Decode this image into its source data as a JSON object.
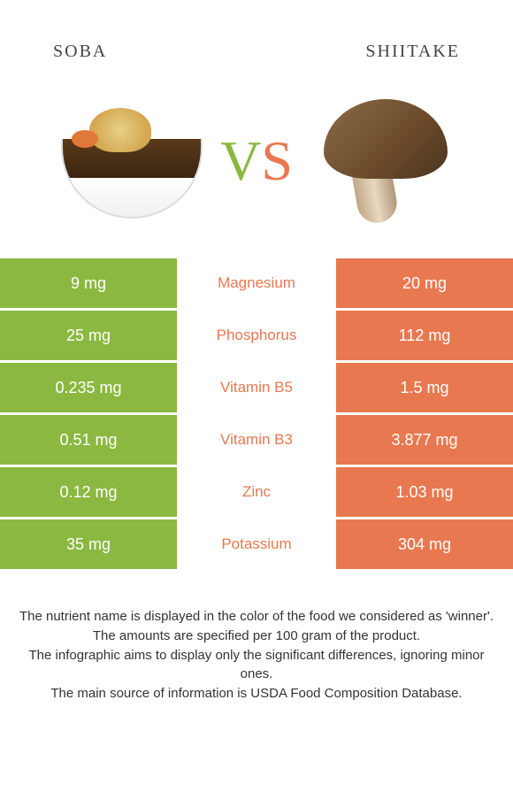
{
  "header": {
    "left_title": "soba",
    "right_title": "shiitake"
  },
  "vs": {
    "v": "V",
    "s": "S"
  },
  "colors": {
    "left": "#8bb840",
    "right": "#e87850",
    "background": "#ffffff"
  },
  "nutrients": [
    {
      "name": "Magnesium",
      "left": "9 mg",
      "right": "20 mg",
      "winner": "right"
    },
    {
      "name": "Phosphorus",
      "left": "25 mg",
      "right": "112 mg",
      "winner": "right"
    },
    {
      "name": "Vitamin B5",
      "left": "0.235 mg",
      "right": "1.5 mg",
      "winner": "right"
    },
    {
      "name": "Vitamin B3",
      "left": "0.51 mg",
      "right": "3.877 mg",
      "winner": "right"
    },
    {
      "name": "Zinc",
      "left": "0.12 mg",
      "right": "1.03 mg",
      "winner": "right"
    },
    {
      "name": "Potassium",
      "left": "35 mg",
      "right": "304 mg",
      "winner": "right"
    }
  ],
  "footer": {
    "line1": "The nutrient name is displayed in the color of the food we considered as 'winner'.",
    "line2": "The amounts are specified per 100 gram of the product.",
    "line3": "The infographic aims to display only the significant differences, ignoring minor ones.",
    "line4": "The main source of information is USDA Food Composition Database."
  }
}
